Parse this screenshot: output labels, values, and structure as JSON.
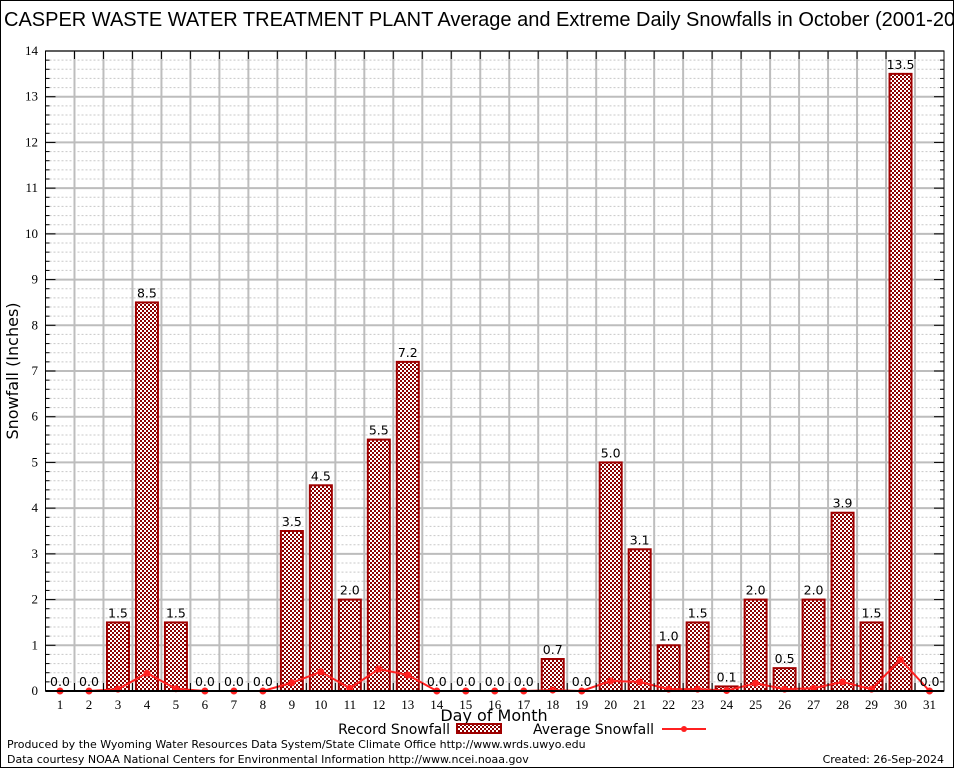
{
  "chart_data": {
    "type": "bar",
    "title": "CASPER WASTE WATER TREATMENT PLANT Average and Extreme Daily Snowfalls in October (2001-20",
    "xlabel": "Day of Month",
    "ylabel": "Snowfall (Inches)",
    "ylim": [
      0,
      14
    ],
    "xlim": [
      0.5,
      31.5
    ],
    "yticks": [
      0,
      1,
      2,
      3,
      4,
      5,
      6,
      7,
      8,
      9,
      10,
      11,
      12,
      13,
      14
    ],
    "grid": true,
    "legend_position": "bottom",
    "categories": [
      1,
      2,
      3,
      4,
      5,
      6,
      7,
      8,
      9,
      10,
      11,
      12,
      13,
      14,
      15,
      16,
      17,
      18,
      19,
      20,
      21,
      22,
      23,
      24,
      25,
      26,
      27,
      28,
      29,
      30,
      31
    ],
    "series": [
      {
        "name": "Record Snowfall",
        "kind": "bar",
        "color": "#a00000",
        "values": [
          0.0,
          0.0,
          1.5,
          8.5,
          1.5,
          0.0,
          0.0,
          0.0,
          3.5,
          4.5,
          2.0,
          5.5,
          7.2,
          0.0,
          0.0,
          0.0,
          0.0,
          0.7,
          0.0,
          5.0,
          3.1,
          1.0,
          1.5,
          0.1,
          2.0,
          0.5,
          2.0,
          3.9,
          1.5,
          13.5,
          0.0
        ],
        "labels": [
          "0.0",
          "0.0",
          "1.5",
          "8.5",
          "1.5",
          "0.0",
          "0.0",
          "0.0",
          "3.5",
          "4.5",
          "2.0",
          "5.5",
          "7.2",
          "0.0",
          "0.0",
          "0.0",
          "0.0",
          "0.7",
          "0.0",
          "5.0",
          "3.1",
          "1.0",
          "1.5",
          "0.1",
          "2.0",
          "0.5",
          "2.0",
          "3.9",
          "1.5",
          "13.5",
          "0.0"
        ]
      },
      {
        "name": "Average Snowfall",
        "kind": "line",
        "color": "#ff2020",
        "values": [
          0.0,
          0.0,
          0.04,
          0.39,
          0.05,
          0.0,
          0.0,
          0.0,
          0.18,
          0.42,
          0.06,
          0.48,
          0.35,
          0.0,
          0.0,
          0.0,
          0.0,
          0.02,
          0.0,
          0.22,
          0.2,
          0.04,
          0.04,
          0.01,
          0.17,
          0.04,
          0.06,
          0.2,
          0.04,
          0.69,
          0.0
        ]
      }
    ]
  },
  "footer": {
    "line1": "Produced by the Wyoming Water Resources Data System/State Climate Office http://www.wrds.uwyo.edu",
    "line2": "Data courtesy NOAA National Centers for Environmental Information http://www.ncei.noaa.gov",
    "created": "Created: 26-Sep-2024"
  }
}
